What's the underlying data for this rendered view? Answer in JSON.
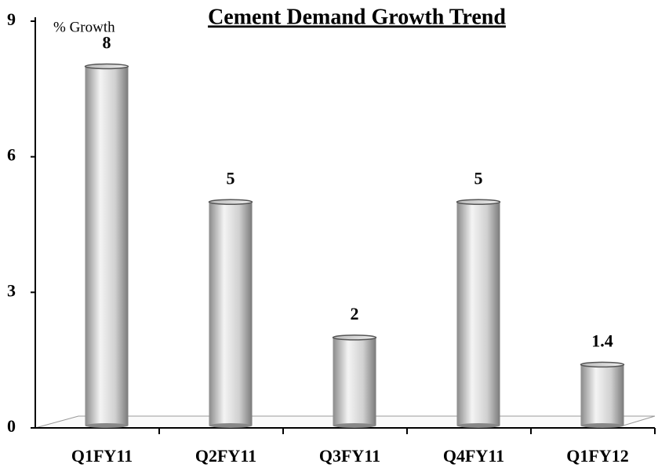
{
  "chart_data": {
    "type": "bar",
    "title": "Cement Demand Growth Trend",
    "y_label": "% Growth",
    "categories": [
      "Q1FY11",
      "Q2FY11",
      "Q3FY11",
      "Q4FY11",
      "Q1FY12"
    ],
    "values": [
      8,
      5,
      2,
      5,
      1.4
    ],
    "color": "#a0a0a0",
    "ylim": [
      0,
      9
    ],
    "yticks": [
      0,
      3,
      6,
      9
    ],
    "grid": false
  }
}
